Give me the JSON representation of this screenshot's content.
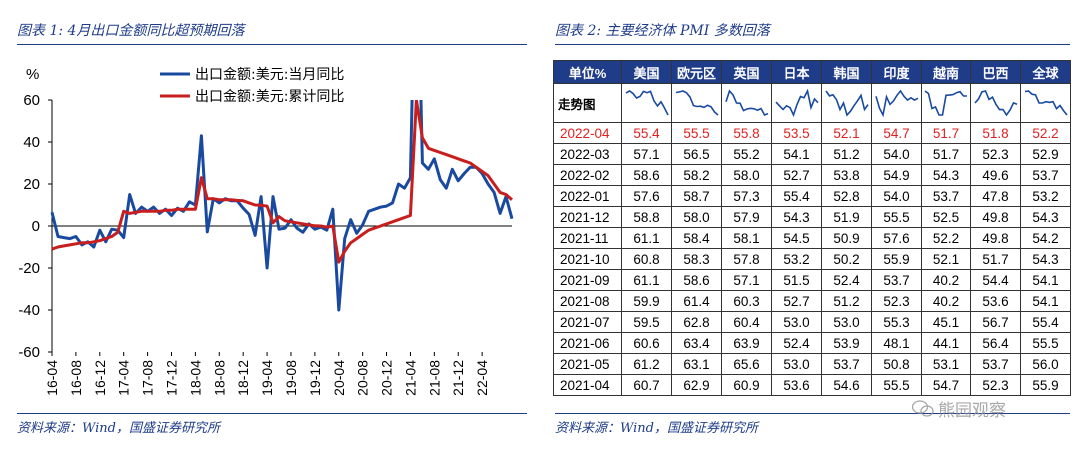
{
  "left": {
    "title": "图表 1:  4月出口金额同比超预期回落",
    "source": "资料来源：Wind，国盛证券研究所"
  },
  "right": {
    "title": "图表 2:  主要经济体 PMI 多数回落",
    "source": "资料来源：Wind，国盛证券研究所",
    "table": {
      "headers": [
        "单位%",
        "美国",
        "欧元区",
        "英国",
        "日本",
        "韩国",
        "印度",
        "越南",
        "巴西",
        "全球"
      ],
      "trend_label": "走势图",
      "rows": [
        {
          "date": "2022-04",
          "values": [
            "55.4",
            "55.5",
            "55.8",
            "53.5",
            "52.1",
            "54.7",
            "51.7",
            "51.8",
            "52.2"
          ],
          "highlight": true
        },
        {
          "date": "2022-03",
          "values": [
            "57.1",
            "56.5",
            "55.2",
            "54.1",
            "51.2",
            "54.0",
            "51.7",
            "52.3",
            "52.9"
          ]
        },
        {
          "date": "2022-02",
          "values": [
            "58.6",
            "58.2",
            "58.0",
            "52.7",
            "53.8",
            "54.9",
            "54.3",
            "49.6",
            "53.7"
          ]
        },
        {
          "date": "2022-01",
          "values": [
            "57.6",
            "58.7",
            "57.3",
            "55.4",
            "52.8",
            "54.0",
            "53.7",
            "47.8",
            "53.2"
          ]
        },
        {
          "date": "2021-12",
          "values": [
            "58.8",
            "58.0",
            "57.9",
            "54.3",
            "51.9",
            "55.5",
            "52.5",
            "49.8",
            "54.3"
          ]
        },
        {
          "date": "2021-11",
          "values": [
            "61.1",
            "58.4",
            "58.1",
            "54.5",
            "50.9",
            "57.6",
            "52.2",
            "49.8",
            "54.2"
          ]
        },
        {
          "date": "2021-10",
          "values": [
            "60.8",
            "58.3",
            "57.8",
            "53.2",
            "50.2",
            "55.9",
            "52.1",
            "51.7",
            "54.3"
          ]
        },
        {
          "date": "2021-09",
          "values": [
            "61.1",
            "58.6",
            "57.1",
            "51.5",
            "52.4",
            "53.7",
            "40.2",
            "54.4",
            "54.1"
          ]
        },
        {
          "date": "2021-08",
          "values": [
            "59.9",
            "61.4",
            "60.3",
            "52.7",
            "51.2",
            "52.3",
            "40.2",
            "53.6",
            "54.1"
          ]
        },
        {
          "date": "2021-07",
          "values": [
            "59.5",
            "62.8",
            "60.4",
            "53.0",
            "53.0",
            "55.3",
            "45.1",
            "56.7",
            "55.4"
          ]
        },
        {
          "date": "2021-06",
          "values": [
            "60.6",
            "63.4",
            "63.9",
            "52.4",
            "53.9",
            "48.1",
            "44.1",
            "56.4",
            "55.5"
          ]
        },
        {
          "date": "2021-05",
          "values": [
            "61.2",
            "63.1",
            "65.6",
            "53.0",
            "53.7",
            "50.8",
            "53.1",
            "53.7",
            "56.0"
          ]
        },
        {
          "date": "2021-04",
          "values": [
            "60.7",
            "62.9",
            "60.9",
            "53.6",
            "54.6",
            "55.5",
            "54.7",
            "52.3",
            "55.9"
          ]
        }
      ]
    }
  },
  "watermark": "熊园观察",
  "colors": {
    "blue": "#1a4aa0",
    "red": "#c81e1e",
    "header": "#1f3c88",
    "highlight": "#e02020"
  },
  "chart_data": {
    "type": "line",
    "ylabel": "%",
    "ylim": [
      -60,
      60
    ],
    "yticks": [
      60,
      40,
      20,
      0,
      -20,
      -40,
      -60
    ],
    "xticks": [
      "16-04",
      "16-08",
      "16-12",
      "17-04",
      "17-08",
      "17-12",
      "18-04",
      "18-08",
      "18-12",
      "19-04",
      "19-08",
      "19-12",
      "20-04",
      "20-08",
      "20-12",
      "21-04",
      "21-08",
      "21-12",
      "22-04"
    ],
    "legend_position": "top-left",
    "series": [
      {
        "name": "出口金额:美元:当月同比",
        "color": "#1a4aa0",
        "x_start": "2016-04",
        "values": [
          6.5,
          -5,
          -5.5,
          -6,
          -5,
          -9,
          -7.5,
          -10,
          -2,
          -7.5,
          -1.5,
          -2,
          -5.5,
          15,
          6,
          9,
          7,
          9,
          6,
          8,
          5,
          8.5,
          7,
          11.5,
          10,
          43,
          -2.8,
          13,
          11,
          13,
          12,
          12,
          8.5,
          5.5,
          -4.5,
          14,
          -20,
          14,
          -1.5,
          -1,
          3,
          -1,
          -3,
          1,
          -1.5,
          -0.5,
          -2,
          8,
          -40,
          -6,
          3,
          -3.5,
          0.5,
          7,
          8,
          9,
          9.5,
          11,
          20,
          18,
          23,
          155,
          30,
          27,
          32,
          22,
          18,
          27,
          21.5,
          25,
          28,
          28,
          25,
          20,
          16,
          6,
          14,
          3.5
        ]
      },
      {
        "name": "出口金额:美元:累计同比",
        "color": "#c81e1e",
        "x_start": "2016-04",
        "values": [
          -11,
          -10,
          -9.5,
          -9,
          -8.5,
          -8,
          -8,
          -7.5,
          -7,
          -6,
          -5,
          -3,
          7,
          6,
          6.5,
          7,
          7,
          7,
          7,
          7.5,
          7.5,
          8,
          8,
          8,
          8,
          23,
          13,
          13,
          12.5,
          12.5,
          12.5,
          12.2,
          12,
          11,
          10,
          9.9,
          9.5,
          1.5,
          4.5,
          2.5,
          2,
          1.5,
          1,
          0.5,
          0.1,
          0,
          -0.5,
          0,
          -17.2,
          -12,
          -8,
          -6,
          -4,
          -2,
          -1,
          0,
          1,
          2,
          3,
          4,
          5,
          60,
          42,
          37,
          36,
          35,
          34,
          33,
          32,
          31,
          30,
          28,
          26,
          24,
          20,
          16,
          15,
          12.5
        ]
      }
    ]
  }
}
